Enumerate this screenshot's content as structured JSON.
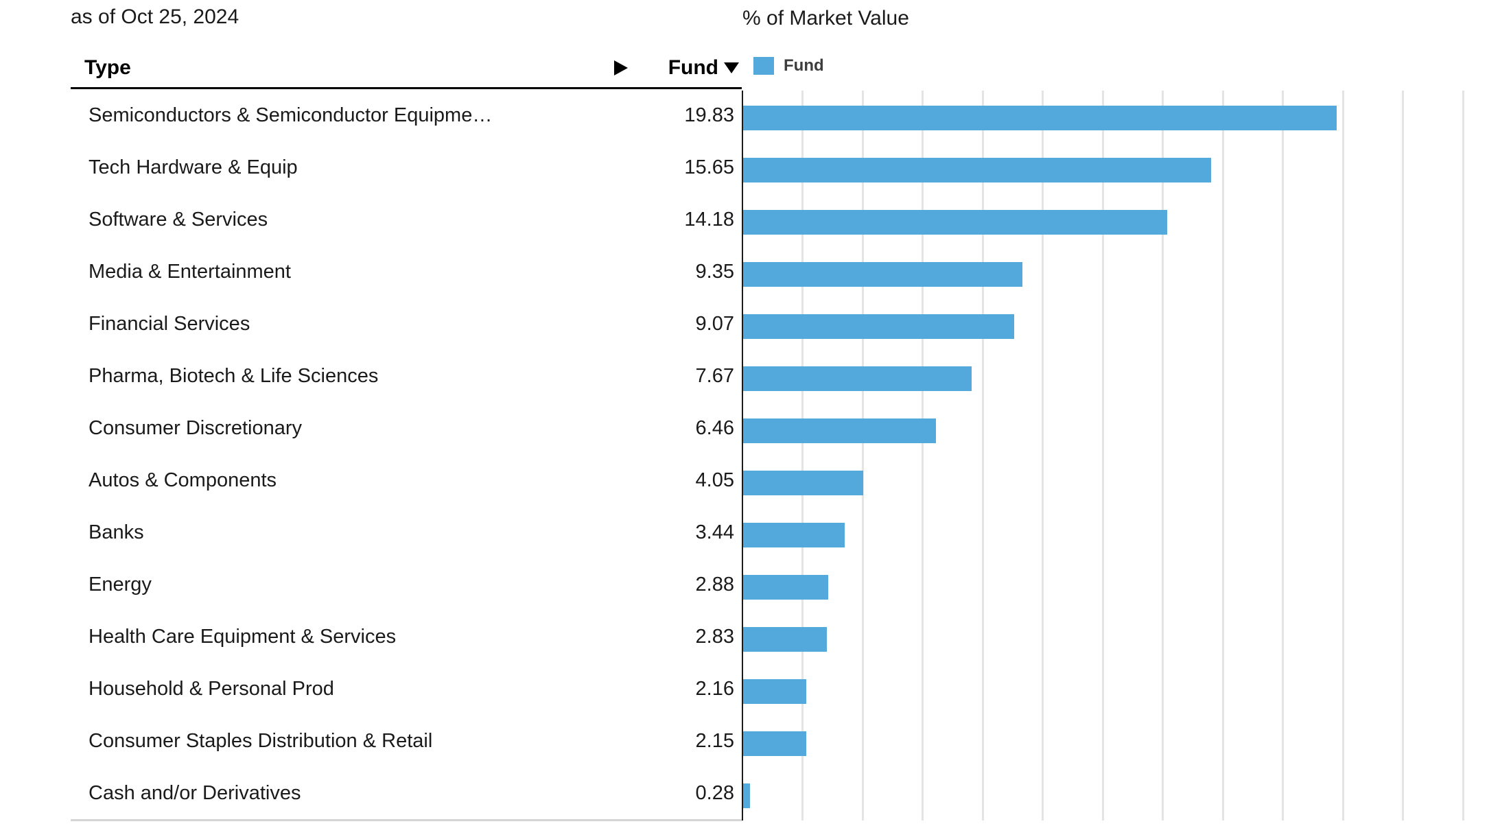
{
  "meta": {
    "as_of": "as of Oct 25, 2024"
  },
  "table": {
    "type_header": "Type",
    "fund_header": "Fund",
    "icons": {
      "expand": "right-triangle-icon",
      "sort": "down-triangle-icon"
    },
    "rows": [
      {
        "type": "Semiconductors & Semiconductor Equipme…",
        "fund": "19.83"
      },
      {
        "type": "Tech Hardware & Equip",
        "fund": "15.65"
      },
      {
        "type": "Software & Services",
        "fund": "14.18"
      },
      {
        "type": "Media & Entertainment",
        "fund": "9.35"
      },
      {
        "type": "Financial Services",
        "fund": "9.07"
      },
      {
        "type": "Pharma, Biotech & Life Sciences",
        "fund": "7.67"
      },
      {
        "type": "Consumer Discretionary",
        "fund": "6.46"
      },
      {
        "type": "Autos & Components",
        "fund": "4.05"
      },
      {
        "type": "Banks",
        "fund": "3.44"
      },
      {
        "type": "Energy",
        "fund": "2.88"
      },
      {
        "type": "Health Care Equipment & Services",
        "fund": "2.83"
      },
      {
        "type": "Household & Personal Prod",
        "fund": "2.16"
      },
      {
        "type": "Consumer Staples Distribution & Retail",
        "fund": "2.15"
      },
      {
        "type": "Cash and/or Derivatives",
        "fund": "0.28"
      }
    ]
  },
  "chart": {
    "title": "% of Market Value",
    "legend_label": "Fund"
  },
  "chart_data": {
    "type": "bar",
    "orientation": "horizontal",
    "title": "% of Market Value",
    "legend": [
      "Fund"
    ],
    "legend_position": "top",
    "categories": [
      "Semiconductors & Semiconductor Equipme…",
      "Tech Hardware & Equip",
      "Software & Services",
      "Media & Entertainment",
      "Financial Services",
      "Pharma, Biotech & Life Sciences",
      "Consumer Discretionary",
      "Autos & Components",
      "Banks",
      "Energy",
      "Health Care Equipment & Services",
      "Household & Personal Prod",
      "Consumer Staples Distribution & Retail",
      "Cash and/or Derivatives"
    ],
    "series": [
      {
        "name": "Fund",
        "values": [
          19.83,
          15.65,
          14.18,
          9.35,
          9.07,
          7.67,
          6.46,
          4.05,
          3.44,
          2.88,
          2.83,
          2.16,
          2.15,
          0.28
        ]
      }
    ],
    "xlim": [
      0,
      24.9
    ],
    "gridline_step": 2,
    "grid": true,
    "tick_labels_visible": false,
    "bar_color": "#54a9dc"
  },
  "colors": {
    "bar_blue": "#54a9dc",
    "gridline": "#e4e4e4",
    "axis_line": "#1a1a1a",
    "header_underline": "#000000",
    "table_bottom_border": "#d5d5d5",
    "text": "#1a1a1a",
    "legend_text": "#3d3d3d"
  }
}
